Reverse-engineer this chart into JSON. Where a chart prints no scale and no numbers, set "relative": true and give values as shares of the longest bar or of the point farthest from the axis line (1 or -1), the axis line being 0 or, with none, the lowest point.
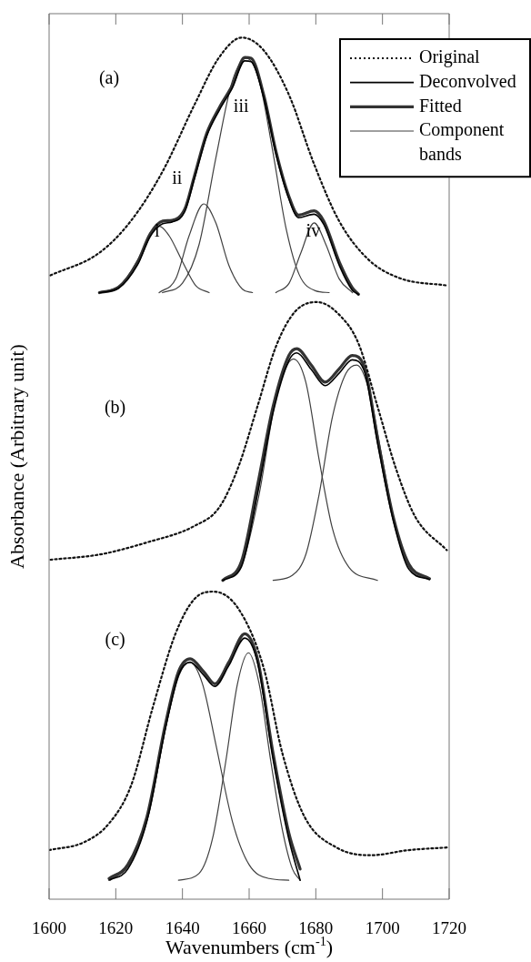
{
  "chart_data": {
    "type": "line",
    "relative": true,
    "xlabel": "Wavenumbers (cm$^{-1}$)",
    "ylabel": "Absorbance (Arbitrary unit)",
    "xlim": [
      1600,
      1720
    ],
    "xticks": [
      1600,
      1620,
      1640,
      1660,
      1680,
      1700,
      1720
    ],
    "legend": "top right",
    "annotations": [
      "(a)",
      "(b)",
      "(c)",
      "i",
      "ii",
      "iii",
      "iv"
    ],
    "series": [
      {
        "name": "Original",
        "color": "#111111",
        "line_style": "dotted",
        "x": [
          1600.4,
          1615.0,
          1624.5,
          1634.1,
          1643.6,
          1651.0,
          1657.8,
          1664.4,
          1672.0,
          1679.5,
          1687.0,
          1695.6,
          1705.0,
          1719.7
        ],
        "values": [
          0.724,
          0.75,
          0.787,
          0.845,
          0.922,
          0.977,
          1.0,
          0.985,
          0.933,
          0.853,
          0.787,
          0.743,
          0.721,
          0.712
        ]
      },
      {
        "name": "Deconvolved",
        "color": "#000000",
        "line_style": "solid",
        "x": [
          1615.1,
          1620.8,
          1626.5,
          1630.3,
          1634.1,
          1636.9,
          1640.7,
          1643.5,
          1647.3,
          1651.1,
          1654.9,
          1658.7,
          1660.6,
          1664.4,
          1668.1,
          1671.9,
          1674.8,
          1679.5,
          1682.4,
          1687.1,
          1690.9,
          1692.8
        ],
        "values": [
          0.704,
          0.709,
          0.736,
          0.769,
          0.784,
          0.786,
          0.798,
          0.835,
          0.886,
          0.916,
          0.941,
          0.973,
          0.972,
          0.93,
          0.864,
          0.813,
          0.791,
          0.795,
          0.783,
          0.735,
          0.707,
          0.702
        ]
      },
      {
        "name": "Fitted",
        "color": "#333333",
        "line_style": "solid",
        "x": [
          1615.1,
          1620.8,
          1626.5,
          1630.3,
          1634.1,
          1636.9,
          1640.7,
          1643.5,
          1647.3,
          1651.1,
          1654.9,
          1658.7,
          1660.6,
          1664.4,
          1668.1,
          1671.9,
          1674.8,
          1679.5,
          1682.4,
          1687.1,
          1690.9,
          1692.8
        ],
        "values": [
          0.704,
          0.71,
          0.739,
          0.772,
          0.787,
          0.788,
          0.801,
          0.838,
          0.889,
          0.919,
          0.944,
          0.977,
          0.976,
          0.933,
          0.867,
          0.816,
          0.794,
          0.799,
          0.787,
          0.739,
          0.71,
          0.702
        ]
      },
      {
        "name": "Component bands",
        "color": "#404040",
        "line_style": "solid",
        "x": [
          1615.7,
          1622,
          1627,
          1630.5,
          1633.1,
          1636,
          1640,
          1644,
          1648
        ],
        "values": [
          0.704,
          0.715,
          0.745,
          0.772,
          0.781,
          0.77,
          0.74,
          0.712,
          0.704
        ]
      },
      {
        "color": "#404040",
        "line_style": "solid",
        "x": [
          1633,
          1638,
          1642,
          1646.4,
          1650,
          1654,
          1658,
          1661
        ],
        "values": [
          0.704,
          0.72,
          0.77,
          0.807,
          0.785,
          0.735,
          0.708,
          0.704
        ]
      },
      {
        "color": "#404040",
        "line_style": "solid",
        "x": [
          1634,
          1640,
          1645,
          1650,
          1655,
          1659.2,
          1663,
          1667,
          1671,
          1675,
          1680,
          1684
        ],
        "values": [
          0.704,
          0.715,
          0.76,
          0.86,
          0.95,
          0.976,
          0.95,
          0.87,
          0.78,
          0.725,
          0.706,
          0.704
        ]
      },
      {
        "color": "#404040",
        "line_style": "solid",
        "x": [
          1668,
          1672,
          1675.5,
          1679.5,
          1683,
          1687,
          1691
        ],
        "values": [
          0.704,
          0.715,
          0.75,
          0.785,
          0.76,
          0.72,
          0.704
        ]
      },
      {
        "color": "#111111",
        "line_style": "dotted",
        "x": [
          1600.4,
          1615.1,
          1629.3,
          1643.5,
          1651.1,
          1656.8,
          1662.5,
          1668.1,
          1673.8,
          1680.4,
          1687.1,
          1692.8,
          1698.5,
          1704.1,
          1709.8,
          1719.3
        ],
        "values": [
          0.394,
          0.4,
          0.414,
          0.433,
          0.455,
          0.502,
          0.572,
          0.642,
          0.682,
          0.693,
          0.678,
          0.645,
          0.572,
          0.499,
          0.444,
          0.405
        ]
      },
      {
        "color": "#000000",
        "line_style": "solid",
        "x": [
          1652.1,
          1657.7,
          1662.5,
          1667.2,
          1671.9,
          1674.3,
          1678.6,
          1682.8,
          1687.1,
          1690.9,
          1694.7,
          1698.5,
          1703.2,
          1707.9,
          1714.1
        ],
        "values": [
          0.37,
          0.386,
          0.47,
          0.565,
          0.625,
          0.634,
          0.615,
          0.596,
          0.611,
          0.626,
          0.611,
          0.53,
          0.44,
          0.383,
          0.371
        ]
      },
      {
        "color": "#333333",
        "line_style": "solid",
        "x": [
          1652.1,
          1657.7,
          1662.5,
          1667.2,
          1671.9,
          1674.3,
          1678.6,
          1682.8,
          1687.1,
          1690.9,
          1694.7,
          1698.5,
          1703.2,
          1707.9,
          1714.1
        ],
        "values": [
          0.37,
          0.392,
          0.48,
          0.572,
          0.631,
          0.639,
          0.62,
          0.6,
          0.616,
          0.631,
          0.616,
          0.535,
          0.444,
          0.389,
          0.372
        ]
      },
      {
        "color": "#404040",
        "line_style": "solid",
        "x": [
          1652.4,
          1658,
          1663,
          1668,
          1673.3,
          1677,
          1681,
          1685,
          1690,
          1698.5
        ],
        "values": [
          0.37,
          0.39,
          0.47,
          0.58,
          0.627,
          0.6,
          0.51,
          0.43,
          0.385,
          0.37
        ]
      },
      {
        "color": "#404040",
        "line_style": "solid",
        "x": [
          1667.2,
          1673,
          1677,
          1681,
          1685,
          1689,
          1692.3,
          1696,
          1700,
          1704,
          1708,
          1713.8
        ],
        "values": [
          0.37,
          0.376,
          0.4,
          0.47,
          0.56,
          0.61,
          0.62,
          0.59,
          0.51,
          0.43,
          0.385,
          0.371
        ]
      },
      {
        "color": "#111111",
        "line_style": "dotted",
        "x": [
          1600,
          1610.4,
          1618.0,
          1624.6,
          1631.2,
          1637.9,
          1643.5,
          1649.2,
          1656.8,
          1664.4,
          1670.0,
          1676.7,
          1686.2,
          1696.5,
          1707.9,
          1719.3
        ],
        "values": [
          0.057,
          0.066,
          0.088,
          0.132,
          0.224,
          0.308,
          0.348,
          0.357,
          0.337,
          0.268,
          0.169,
          0.095,
          0.06,
          0.051,
          0.057,
          0.06
        ]
      },
      {
        "color": "#000000",
        "line_style": "solid",
        "x": [
          1618.0,
          1623.6,
          1629.3,
          1635.0,
          1638.8,
          1642.3,
          1646.4,
          1649.7,
          1653.9,
          1658.7,
          1662.5,
          1667.2,
          1671.9,
          1675.3
        ],
        "values": [
          0.022,
          0.035,
          0.09,
          0.2,
          0.26,
          0.275,
          0.26,
          0.247,
          0.271,
          0.303,
          0.275,
          0.162,
          0.07,
          0.022
        ]
      },
      {
        "color": "#333333",
        "line_style": "solid",
        "x": [
          1618.0,
          1623.6,
          1629.3,
          1635.0,
          1638.8,
          1642.3,
          1646.4,
          1649.7,
          1653.9,
          1658.7,
          1662.5,
          1667.2,
          1671.9,
          1675.3
        ],
        "values": [
          0.024,
          0.04,
          0.095,
          0.205,
          0.264,
          0.279,
          0.264,
          0.25,
          0.275,
          0.308,
          0.279,
          0.169,
          0.077,
          0.035
        ]
      },
      {
        "color": "#404040",
        "line_style": "solid",
        "x": [
          1618.3,
          1624,
          1630,
          1635,
          1639,
          1642.2,
          1646,
          1650,
          1655,
          1660,
          1666,
          1671.9
        ],
        "values": [
          0.022,
          0.04,
          0.1,
          0.2,
          0.26,
          0.275,
          0.25,
          0.18,
          0.09,
          0.04,
          0.024,
          0.022
        ]
      },
      {
        "color": "#404040",
        "line_style": "solid",
        "x": [
          1638.8,
          1645,
          1649,
          1653,
          1656.5,
          1659.8,
          1663,
          1666.5,
          1670,
          1673,
          1675.3
        ],
        "values": [
          0.022,
          0.03,
          0.07,
          0.16,
          0.25,
          0.286,
          0.25,
          0.16,
          0.08,
          0.035,
          0.022
        ]
      }
    ]
  }
}
